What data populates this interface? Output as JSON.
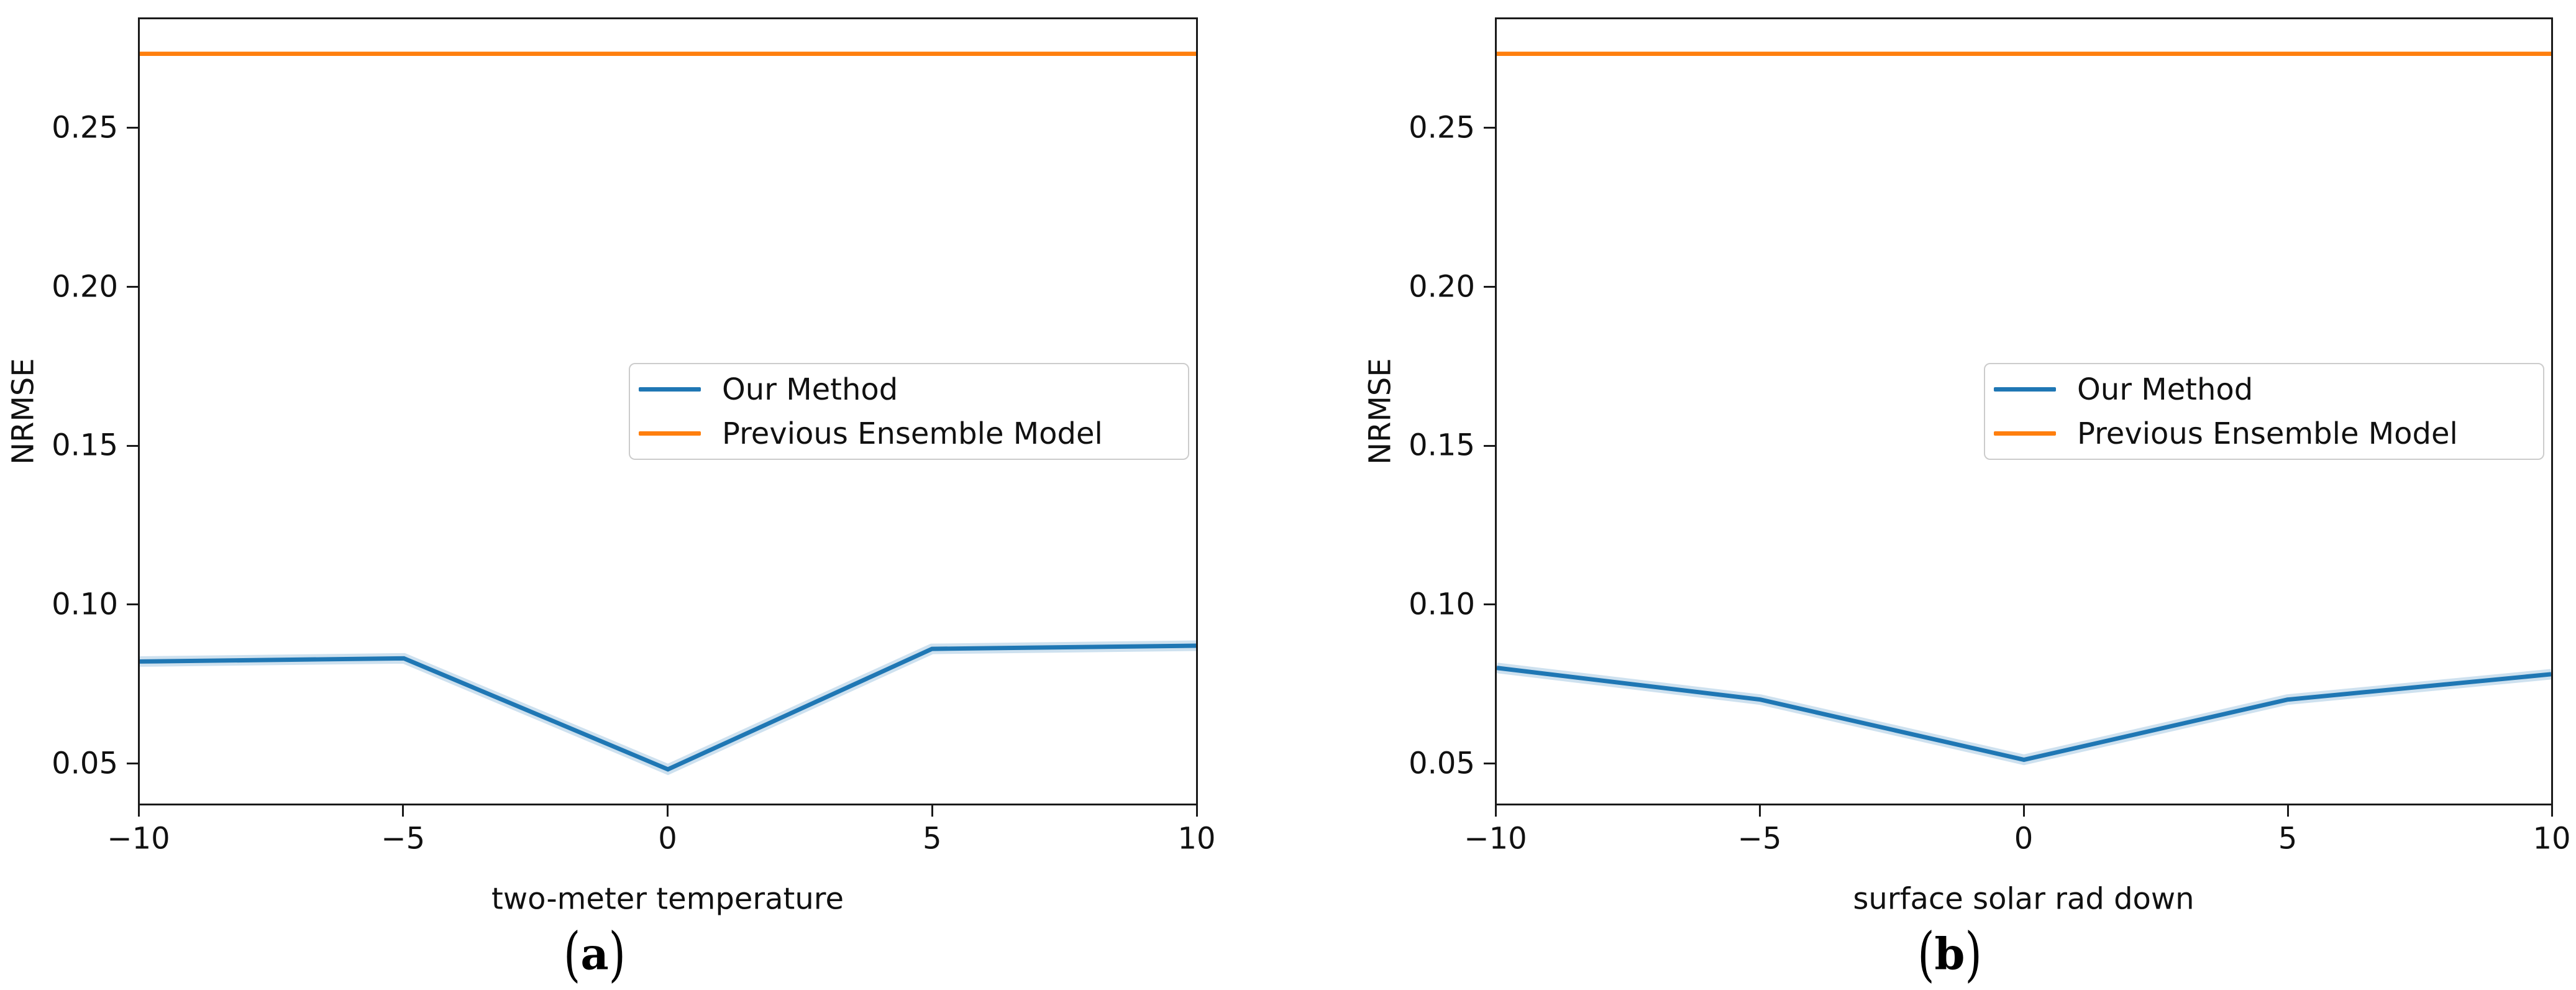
{
  "figure": {
    "background": "#ffffff",
    "text_color": "#111111",
    "axis_color": "#1a1a1a",
    "legend_border_color": "#cccccc"
  },
  "chart_data": [
    {
      "type": "line",
      "caption": "(a)",
      "title": "",
      "xlabel": "two-meter temperature",
      "ylabel": "NRMSE",
      "x": [
        -10,
        -5,
        0,
        5,
        10
      ],
      "xlim": [
        -10,
        10
      ],
      "ylim": [
        0.0372,
        0.2846
      ],
      "xticks": [
        -10,
        -5,
        0,
        5,
        10
      ],
      "xtick_labels": [
        "−10",
        "−5",
        "0",
        "5",
        "10"
      ],
      "yticks": [
        0.05,
        0.1,
        0.15,
        0.2,
        0.25
      ],
      "ytick_labels": [
        "0.05",
        "0.10",
        "0.15",
        "0.20",
        "0.25"
      ],
      "grid": false,
      "legend_position": "center-right",
      "series": [
        {
          "name": "Our Method",
          "color": "#1f77b4",
          "values": [
            0.082,
            0.083,
            0.048,
            0.086,
            0.087
          ]
        },
        {
          "name": "Previous Ensemble Model",
          "color": "#ff7f0e",
          "values": [
            0.2737,
            0.2737,
            0.2737,
            0.2737,
            0.2737
          ]
        }
      ]
    },
    {
      "type": "line",
      "caption": "(b)",
      "title": "",
      "xlabel": "surface solar rad down",
      "ylabel": "NRMSE",
      "x": [
        -10,
        -5,
        0,
        5,
        10
      ],
      "xlim": [
        -10,
        10
      ],
      "ylim": [
        0.0372,
        0.2846
      ],
      "xticks": [
        -10,
        -5,
        0,
        5,
        10
      ],
      "xtick_labels": [
        "−10",
        "−5",
        "0",
        "5",
        "10"
      ],
      "yticks": [
        0.05,
        0.1,
        0.15,
        0.2,
        0.25
      ],
      "ytick_labels": [
        "0.05",
        "0.10",
        "0.15",
        "0.20",
        "0.25"
      ],
      "grid": false,
      "legend_position": "center-right",
      "series": [
        {
          "name": "Our Method",
          "color": "#1f77b4",
          "values": [
            0.08,
            0.07,
            0.051,
            0.07,
            0.078
          ]
        },
        {
          "name": "Previous Ensemble Model",
          "color": "#ff7f0e",
          "values": [
            0.2737,
            0.2737,
            0.2737,
            0.2737,
            0.2737
          ]
        }
      ]
    }
  ]
}
